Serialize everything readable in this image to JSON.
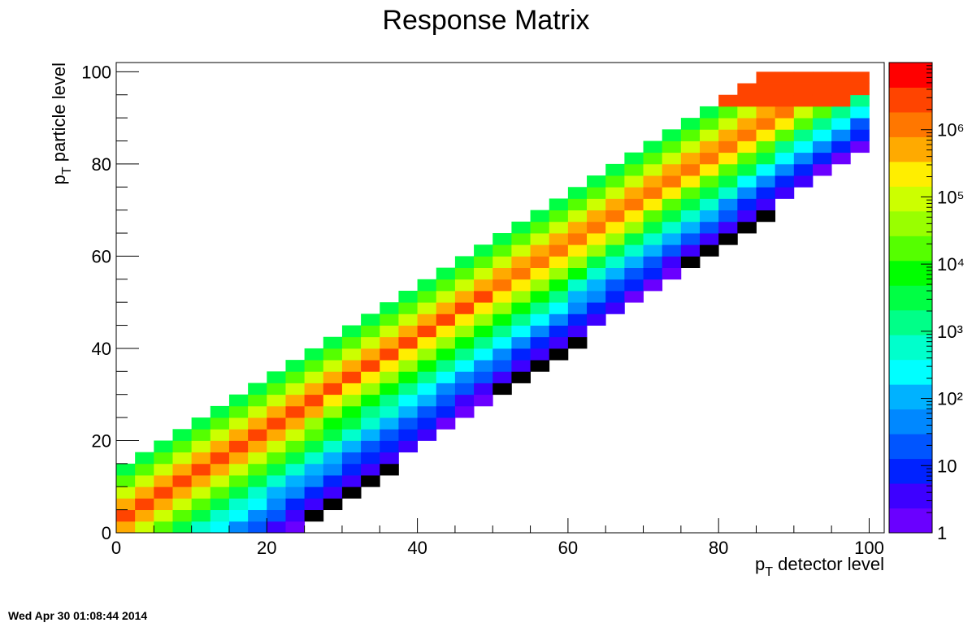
{
  "chart_data": {
    "type": "heatmap",
    "title": "Response Matrix",
    "xlabel": "p_T detector level",
    "ylabel": "p_T particle level",
    "xlim": [
      0,
      102
    ],
    "ylim": [
      0,
      102
    ],
    "x_ticks": [
      "0",
      "20",
      "40",
      "60",
      "80",
      "100"
    ],
    "y_ticks": [
      "0",
      "20",
      "40",
      "60",
      "80",
      "100"
    ],
    "bin_width": 2.5,
    "n_bins": 40,
    "z_scale": "log",
    "z_range": [
      1,
      10000000
    ],
    "z_ticks": [
      "1",
      "10",
      "10²",
      "10³",
      "10⁴",
      "10⁵",
      "10⁶"
    ],
    "palette": [
      "#6a00ff",
      "#3d00ff",
      "#0022ff",
      "#0055ff",
      "#0088ff",
      "#00b2ff",
      "#00ffff",
      "#00ffcc",
      "#00ff88",
      "#00ff44",
      "#00ff00",
      "#55ff00",
      "#99ff00",
      "#ccff00",
      "#ffee00",
      "#ffaa00",
      "#ff7700",
      "#ff4400",
      "#ff0000"
    ],
    "band": {
      "upper_offset": 5,
      "lower_offset_start": -10,
      "lower_offset_end": -6,
      "peak_offset": 1.5,
      "peak_value": 5000000,
      "edge_value_upper": 3000,
      "edge_value_lower": 2,
      "top_bins_saturate": 3
    },
    "grid": false,
    "colorbar_position": "right"
  },
  "timestamp": "Wed Apr 30 01:08:44 2014"
}
